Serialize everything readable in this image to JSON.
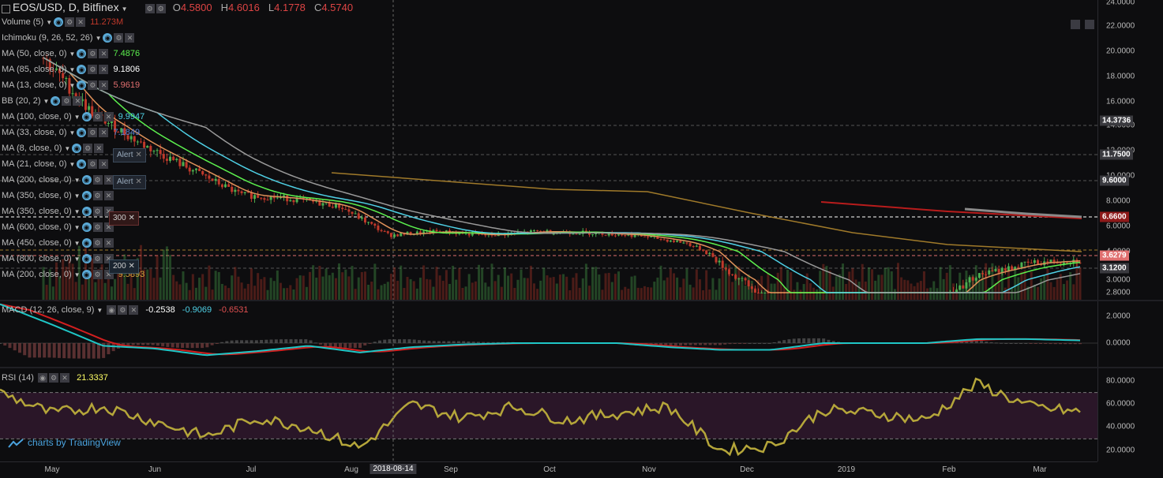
{
  "header": {
    "symbol": "EOS/USD, D, Bitfinex",
    "o_label": "O",
    "o_value": "4.5800",
    "h_label": "H",
    "h_value": "4.6016",
    "l_label": "L",
    "l_value": "4.1778",
    "c_label": "C",
    "c_value": "4.5740"
  },
  "indicators": [
    {
      "name": "Volume (5)",
      "value": "11.273M",
      "color": "#c0392b"
    },
    {
      "name": "Ichimoku (9, 26, 52, 26)",
      "value": "",
      "color": "#bdbdbd"
    },
    {
      "name": "MA (50, close, 0)",
      "value": "7.4876",
      "color": "#5cf04e"
    },
    {
      "name": "MA (85, close, 0)",
      "value": "9.1806",
      "color": "#ffffff"
    },
    {
      "name": "MA (13, close, 0)",
      "value": "5.9619",
      "color": "#e06f6f"
    },
    {
      "name": "BB (20, 2)",
      "value": "",
      "color": "#bdbdbd"
    },
    {
      "name": "MA (100, close, 0)",
      "value": "9.9947",
      "color": "#4fd1e6"
    },
    {
      "name": "MA (33, close, 0)",
      "value": "7.1849",
      "color": "#5b7fd1"
    },
    {
      "name": "MA (8, close, 0)",
      "value": "",
      "color": "#bdbdbd"
    },
    {
      "name": "MA (21, close, 0)",
      "value": "",
      "color": "#bdbdbd"
    },
    {
      "name": "MA (200, close, 0)",
      "value": "",
      "color": "#bdbdbd"
    },
    {
      "name": "MA (350, close, 0)",
      "value": "",
      "color": "#bdbdbd"
    },
    {
      "name": "MA (350, close, 0)",
      "value": "",
      "color": "#bdbdbd"
    },
    {
      "name": "MA (600, close, 0)",
      "value": "",
      "color": "#bdbdbd"
    },
    {
      "name": "MA (450, close, 0)",
      "value": "",
      "color": "#bdbdbd"
    },
    {
      "name": "MA (800, close, 0)",
      "value": "",
      "color": "#bdbdbd"
    },
    {
      "name": "MA (200, close, 0)",
      "value": "9.5893",
      "color": "#d9a63d"
    }
  ],
  "alerts": [
    {
      "label": "Alert"
    },
    {
      "label": "Alert"
    }
  ],
  "badges": [
    {
      "label": "300"
    },
    {
      "label": "200"
    }
  ],
  "macd_legend": {
    "name": "MACD (12, 26, close, 9)",
    "v1": "-0.2538",
    "v2": "-0.9069",
    "v3": "-0.6531"
  },
  "rsi_legend": {
    "name": "RSI (14)",
    "value": "21.3337"
  },
  "main_axis_ticks": [
    "24.0000",
    "22.0000",
    "20.0000",
    "18.0000",
    "16.0000",
    "14.0000",
    "12.0000",
    "10.0000",
    "8.0000",
    "6.0000",
    "4.0000",
    "3.0000",
    "2.8000"
  ],
  "main_price_labels": [
    {
      "text": "14.3736",
      "color": "#3a3a3f"
    },
    {
      "text": "11.7500",
      "color": "#3a3a3f"
    },
    {
      "text": "9.6000",
      "color": "#3a3a3f"
    },
    {
      "text": "6.6600",
      "color": "#8e1a1a"
    },
    {
      "text": "3.6279",
      "color": "#e06f6f"
    },
    {
      "text": "3.1200",
      "color": "#3a3a3f"
    }
  ],
  "macd_ticks": [
    "2.0000",
    "0.0000"
  ],
  "rsi_ticks": [
    "80.0000",
    "60.0000",
    "40.0000",
    "20.0000"
  ],
  "time_labels": [
    {
      "text": "May"
    },
    {
      "text": "Jun"
    },
    {
      "text": "Jul"
    },
    {
      "text": "Aug"
    },
    {
      "text": "2018-08-14",
      "highlight": true
    },
    {
      "text": "Sep"
    },
    {
      "text": "Oct"
    },
    {
      "text": "Nov"
    },
    {
      "text": "Dec"
    },
    {
      "text": "2019"
    },
    {
      "text": "Feb"
    },
    {
      "text": "Mar"
    }
  ],
  "watermark": "charts by TradingView",
  "colors": {
    "up": "#4caf50",
    "down": "#c0392b",
    "ma_green": "#5cf04e",
    "ma_teal": "#4fd1e6",
    "ma_grey": "#9a9a9a",
    "ma_gold": "#a07a2a",
    "ma_orange": "#e0925a",
    "ma_red": "#b81c1c",
    "macd": "#1fc6c6",
    "signal": "#d21f1f",
    "rsi": "#b5a63a",
    "rsi_band": "#2a1628"
  },
  "chart_data": [
    {
      "type": "line",
      "title": "EOS/USD, D, Bitfinex",
      "x": [
        "2018-05-01",
        "2018-05-15",
        "2018-06-01",
        "2018-06-15",
        "2018-07-01",
        "2018-07-15",
        "2018-08-01",
        "2018-08-14",
        "2018-09-01",
        "2018-09-15",
        "2018-10-01",
        "2018-10-15",
        "2018-11-01",
        "2018-11-15",
        "2018-12-01",
        "2018-12-15",
        "2019-01-01",
        "2019-01-15",
        "2019-02-01",
        "2019-02-15",
        "2019-03-01",
        "2019-03-10"
      ],
      "series": [
        {
          "name": "Close",
          "values": [
            19.5,
            15.0,
            12.5,
            10.5,
            8.5,
            8.2,
            7.6,
            5.3,
            5.6,
            5.3,
            5.6,
            5.5,
            5.3,
            4.7,
            3.1,
            2.4,
            2.6,
            2.5,
            2.5,
            3.2,
            3.6,
            3.7
          ]
        }
      ]
    },
    {
      "type": "line",
      "title": "MACD (12, 26, close, 9)",
      "x": [
        "2018-05-01",
        "2018-05-15",
        "2018-06-01",
        "2018-06-15",
        "2018-07-01",
        "2018-07-15",
        "2018-08-01",
        "2018-08-14",
        "2018-09-01",
        "2018-09-15",
        "2018-10-01",
        "2018-10-15",
        "2018-11-01",
        "2018-11-15",
        "2018-12-01",
        "2018-12-15",
        "2019-01-01",
        "2019-01-15",
        "2019-02-01",
        "2019-02-15",
        "2019-03-01",
        "2019-03-10"
      ],
      "series": [
        {
          "values": [
            2.9,
            1.4,
            -0.2,
            -0.4,
            -0.9,
            -0.6,
            -0.2,
            -0.7,
            -0.3,
            -0.1,
            0.0,
            0.0,
            0.0,
            -0.3,
            -0.5,
            -0.5,
            0.0,
            0.0,
            0.0,
            0.3,
            0.3,
            0.2
          ]
        }
      ]
    },
    {
      "type": "line",
      "title": "RSI (14)",
      "ylim": [
        10,
        90
      ],
      "x": [
        "2018-05-01",
        "2018-05-15",
        "2018-06-01",
        "2018-06-15",
        "2018-07-01",
        "2018-07-15",
        "2018-08-01",
        "2018-08-14",
        "2018-09-01",
        "2018-09-15",
        "2018-10-01",
        "2018-10-15",
        "2018-11-01",
        "2018-11-15",
        "2018-12-01",
        "2018-12-15",
        "2019-01-01",
        "2019-01-15",
        "2019-02-01",
        "2019-02-15",
        "2019-03-01",
        "2019-03-10"
      ],
      "series": [
        {
          "values": [
            70,
            52,
            58,
            45,
            32,
            48,
            40,
            22,
            60,
            48,
            58,
            46,
            52,
            58,
            20,
            24,
            55,
            52,
            46,
            78,
            58,
            53
          ]
        }
      ]
    }
  ]
}
